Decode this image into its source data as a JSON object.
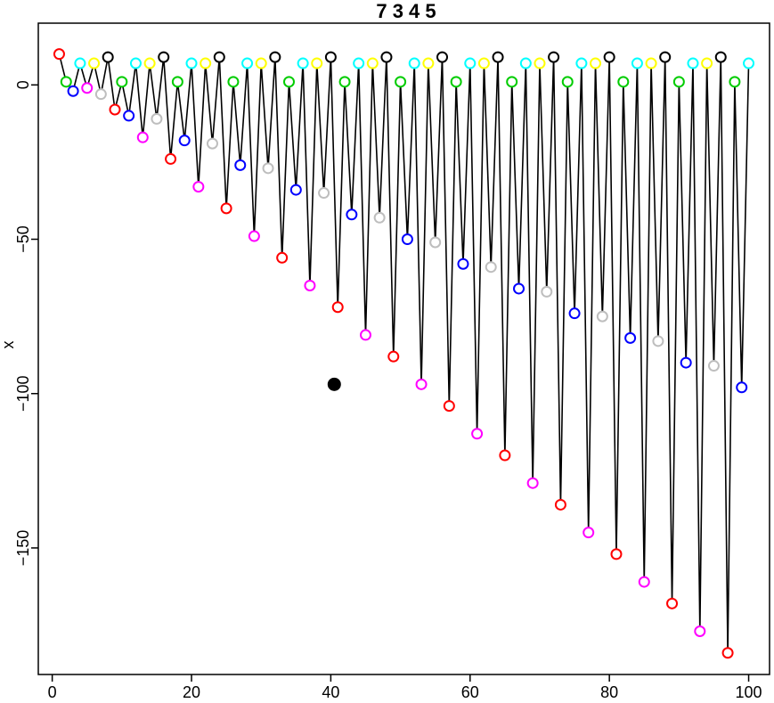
{
  "chart_data": {
    "type": "line",
    "title": "7 3 4 5",
    "xlabel": "",
    "ylabel": "x",
    "xlim": [
      -2,
      103
    ],
    "ylim": [
      -191,
      20
    ],
    "x_ticks": [
      0,
      20,
      40,
      60,
      80,
      100
    ],
    "y_ticks": [
      0,
      -50,
      -100,
      -150
    ],
    "x_tick_labels": [
      "0",
      "20",
      "40",
      "60",
      "80",
      "100"
    ],
    "y_tick_labels": [
      "0",
      "−50",
      "−100",
      "−150"
    ],
    "grid": false,
    "legend": "none",
    "cycle_colors": [
      "#ff0000",
      "#00cc00",
      "#0000ff",
      "#00ffff",
      "#ff00ff",
      "#ffff00",
      "#bebebe",
      "#000000"
    ],
    "series": [
      {
        "x": [
          1,
          2,
          3,
          4,
          5,
          6,
          7,
          8,
          9,
          10,
          11,
          12,
          13,
          14,
          15,
          16,
          17,
          18,
          19,
          20,
          21,
          22,
          23,
          24,
          25,
          26,
          27,
          28,
          29,
          30,
          31,
          32,
          33,
          34,
          35,
          36,
          37,
          38,
          39,
          40,
          41,
          42,
          43,
          44,
          45,
          46,
          47,
          48,
          49,
          50,
          51,
          52,
          53,
          54,
          55,
          56,
          57,
          58,
          59,
          60,
          61,
          62,
          63,
          64,
          65,
          66,
          67,
          68,
          69,
          70,
          71,
          72,
          73,
          74,
          75,
          76,
          77,
          78,
          79,
          80,
          81,
          82,
          83,
          84,
          85,
          86,
          87,
          88,
          89,
          90,
          91,
          92,
          93,
          94,
          95,
          96,
          97,
          98,
          99,
          100
        ],
        "y": [
          10,
          1,
          -2,
          7,
          -1,
          7,
          -3,
          9,
          -8,
          1,
          -10,
          7,
          -17,
          7,
          -11,
          9,
          -24,
          1,
          -18,
          7,
          -33,
          7,
          -19,
          9,
          -40,
          1,
          -26,
          7,
          -49,
          7,
          -27,
          9,
          -56,
          1,
          -34,
          7,
          -65,
          7,
          -35,
          9,
          -72,
          1,
          -42,
          7,
          -81,
          7,
          -43,
          9,
          -88,
          1,
          -50,
          7,
          -97,
          7,
          -51,
          9,
          -104,
          1,
          -58,
          7,
          -113,
          7,
          -59,
          9,
          -120,
          1,
          -66,
          7,
          -129,
          7,
          -67,
          9,
          -136,
          1,
          -74,
          7,
          -145,
          7,
          -75,
          9,
          -152,
          1,
          -82,
          7,
          -161,
          7,
          -83,
          9,
          -168,
          1,
          -90,
          7,
          -177,
          7,
          -91,
          9,
          -184,
          1,
          -98,
          7
        ]
      }
    ],
    "highlight_point": {
      "x": 40.5,
      "y": -97
    }
  }
}
